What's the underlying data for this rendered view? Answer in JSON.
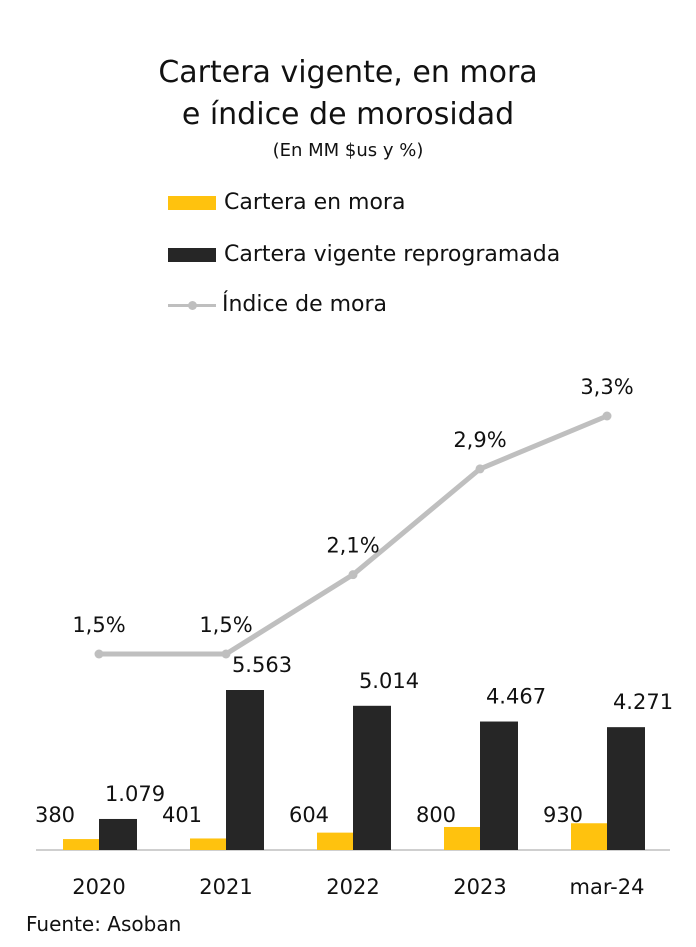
{
  "chart_data": {
    "type": "bar",
    "title_line1": "Cartera vigente, en mora",
    "title_line2": "e índice  de morosidad",
    "subtitle": "(En MM $us y %)",
    "categories": [
      "2020",
      "2021",
      "2022",
      "2023",
      "mar-24"
    ],
    "series": [
      {
        "name": "Cartera en mora",
        "type": "bar",
        "values": [
          380,
          401,
          604,
          800,
          930
        ],
        "labels": [
          "380",
          "401",
          "604",
          "800",
          "930"
        ],
        "color": "#FFC20E"
      },
      {
        "name": "Cartera vigente reprogramada",
        "type": "bar",
        "values": [
          1079,
          5563,
          5014,
          4467,
          4271
        ],
        "labels": [
          "1.079",
          "5.563",
          "5.014",
          "4.467",
          "4.271"
        ],
        "color": "#262626"
      },
      {
        "name": "Índice de mora",
        "type": "line",
        "values": [
          1.5,
          1.5,
          2.1,
          2.9,
          3.3
        ],
        "labels": [
          "1,5%",
          "1,5%",
          "2,1%",
          "2,9%",
          "3,3%"
        ],
        "color": "#BFBFBF"
      }
    ],
    "legend_position": "top",
    "grid": false
  },
  "source": "Fuente: Asoban"
}
